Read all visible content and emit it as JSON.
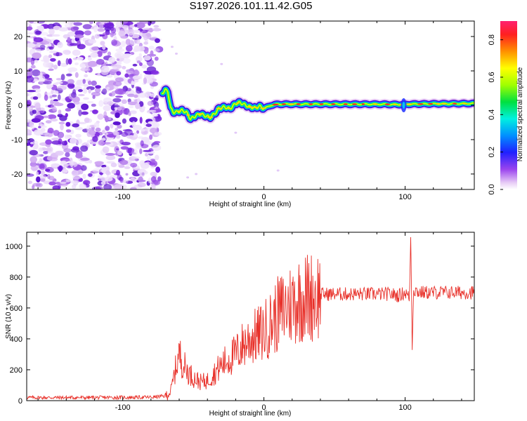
{
  "title": "S197.2026.101.11.42.G05",
  "chart_data": [
    {
      "type": "heatmap",
      "name": "spectrogram",
      "xlabel": "Height of straight line (km)",
      "ylabel": "Frequency (Hz)",
      "xlim": [
        -168,
        149
      ],
      "ylim": [
        -24.5,
        24.5
      ],
      "xticks": [
        -100,
        0,
        100
      ],
      "yticks": [
        -20,
        -10,
        0,
        10,
        20
      ],
      "noise_region_x": [
        -168,
        -74
      ],
      "signal_ridge": {
        "x": [
          -72,
          -70,
          -68,
          -66,
          -64,
          -62,
          -58,
          -55,
          -52,
          -48,
          -45,
          -42,
          -38,
          -35,
          -32,
          -28,
          -24,
          -20,
          -17,
          -14,
          -10,
          -6,
          -3,
          0,
          5,
          10,
          20,
          40,
          60,
          80,
          98,
          100,
          102,
          120,
          149
        ],
        "y": [
          3.5,
          4.5,
          4.0,
          -1.0,
          -2.0,
          -2.0,
          -1.5,
          -2.0,
          -4.0,
          -3.0,
          -2.5,
          -3.0,
          -3.5,
          -2.5,
          -1.0,
          -0.5,
          -1.0,
          0.5,
          0.8,
          0.2,
          -0.5,
          -0.8,
          -0.3,
          -1.0,
          0.0,
          0.3,
          0.3,
          0.3,
          0.3,
          0.3,
          0.2,
          0.2,
          0.3,
          0.4,
          0.5
        ]
      },
      "colorbar": {
        "label": "Normalized spectral amplitude",
        "ticks": [
          "0.0",
          "0.2",
          "0.4",
          "0.6",
          "0.8"
        ],
        "range": [
          0,
          0.9
        ]
      }
    },
    {
      "type": "line",
      "name": "snr",
      "xlabel": "Height of straight line (km)",
      "ylabel": "SNR (10 * v/v)",
      "xlim": [
        -168,
        149
      ],
      "ylim": [
        0,
        1090
      ],
      "xticks": [
        -100,
        0,
        100
      ],
      "yticks": [
        0,
        200,
        400,
        600,
        800,
        1000
      ],
      "line_color": "#e8312a",
      "series": [
        {
          "name": "SNR",
          "x": [
            -168,
            -120,
            -80,
            -70,
            -66,
            -62,
            -60,
            -55,
            -50,
            -45,
            -40,
            -35,
            -30,
            -25,
            -20,
            -15,
            -10,
            -5,
            0,
            5,
            10,
            15,
            20,
            25,
            30,
            35,
            40,
            50,
            60,
            70,
            80,
            90,
            95,
            100,
            102,
            103,
            104,
            105,
            106,
            110,
            120,
            130,
            140,
            149
          ],
          "y": [
            20,
            20,
            22,
            30,
            60,
            230,
            300,
            200,
            150,
            120,
            130,
            180,
            230,
            270,
            300,
            360,
            400,
            420,
            450,
            500,
            560,
            600,
            630,
            660,
            670,
            680,
            690,
            690,
            690,
            690,
            690,
            690,
            680,
            700,
            680,
            640,
            1080,
            360,
            720,
            700,
            700,
            700,
            700,
            700
          ]
        }
      ]
    }
  ]
}
